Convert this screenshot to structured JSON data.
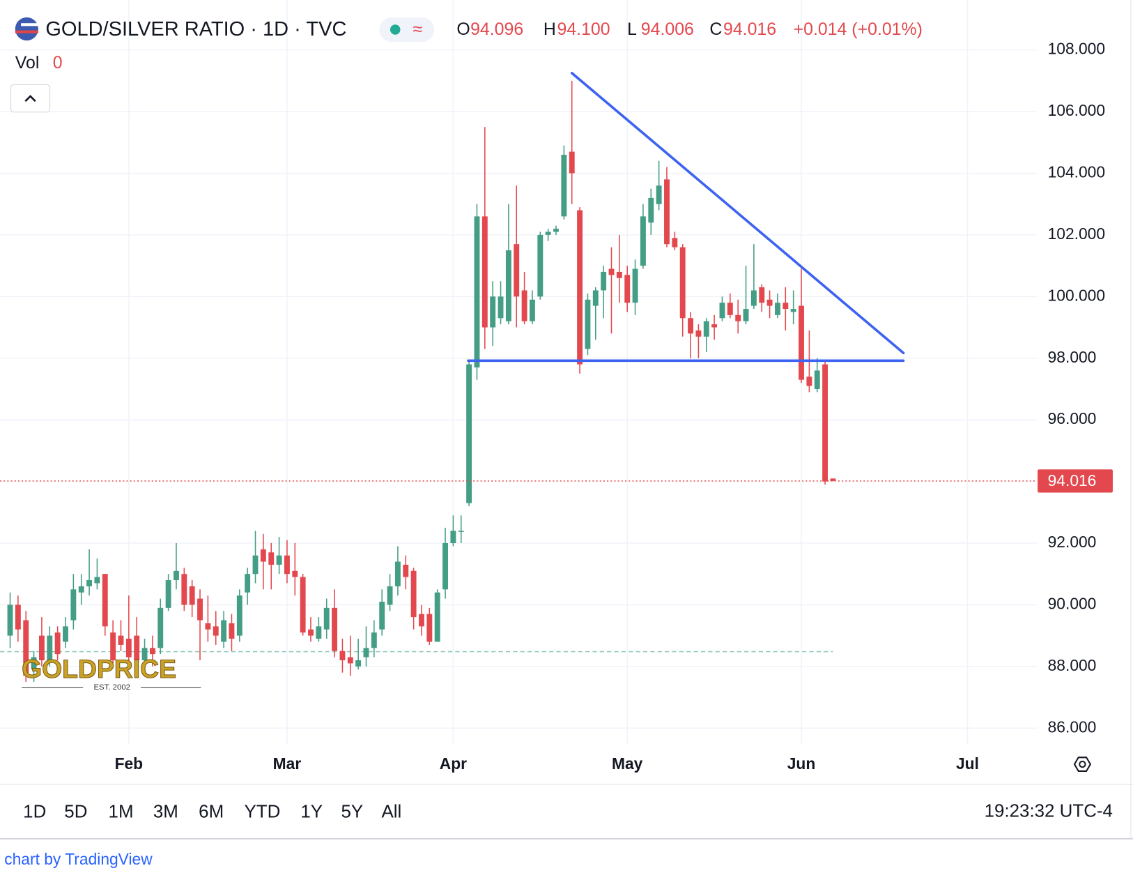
{
  "header": {
    "symbol": "GOLD/SILVER RATIO · 1D · TVC",
    "ohlc": [
      {
        "key": "O",
        "value": "94.096"
      },
      {
        "key": "H",
        "value": "94.100"
      },
      {
        "key": "L",
        "value": "94.006"
      },
      {
        "key": "C",
        "value": "94.016"
      }
    ],
    "change": "+0.014 (+0.01%)",
    "vol_label": "Vol",
    "vol_value": "0"
  },
  "watermark": {
    "text": "GOLDPRICE",
    "sub": "EST. 2002"
  },
  "toolbar": {
    "ranges": [
      "1D",
      "5D",
      "1M",
      "3M",
      "6M",
      "YTD",
      "1Y",
      "5Y",
      "All"
    ],
    "time": "19:23:32 UTC-4"
  },
  "footer": "chart by TradingView",
  "chart_data": {
    "type": "candlestick",
    "up_color": "#449d85",
    "down_color": "#e3484e",
    "grid": true,
    "categories": [
      null,
      null,
      null,
      null,
      null,
      null,
      null,
      null,
      null,
      null,
      null,
      null,
      null,
      null,
      null,
      "Feb",
      null,
      null,
      null,
      null,
      null,
      null,
      null,
      null,
      null,
      null,
      null,
      null,
      null,
      null,
      null,
      null,
      null,
      null,
      null,
      "Mar",
      null,
      null,
      null,
      null,
      null,
      null,
      null,
      null,
      null,
      null,
      null,
      null,
      null,
      null,
      null,
      null,
      null,
      null,
      null,
      null,
      "Apr",
      null,
      null,
      null,
      null,
      null,
      null,
      null,
      null,
      null,
      null,
      null,
      null,
      null,
      null,
      null,
      null,
      null,
      null,
      null,
      null,
      null,
      "May",
      null,
      null,
      null,
      null,
      null,
      null,
      null,
      null,
      null,
      null,
      null,
      null,
      null,
      null,
      null,
      null,
      null,
      null,
      null,
      null,
      null,
      "Jun",
      null,
      null,
      null,
      null,
      null,
      null,
      null,
      null,
      null,
      null,
      null,
      null,
      null,
      null,
      null,
      null,
      null,
      null,
      null,
      null,
      "Jul",
      null,
      null,
      null,
      null,
      null
    ],
    "open": [
      89.0,
      90.0,
      89.5,
      87.9,
      89.0,
      88.2,
      89.1,
      88.8,
      89.5,
      90.4,
      90.6,
      90.7,
      91.0,
      89.1,
      89.0,
      88.9,
      89.0,
      88.2,
      88.6,
      88.6,
      89.9,
      90.8,
      91.0,
      90.6,
      90.2,
      89.4,
      89.3,
      88.8,
      89.4,
      89.0,
      90.4,
      91.0,
      91.8,
      91.7,
      91.3,
      91.6,
      91.1,
      90.9,
      89.2,
      88.9,
      89.2,
      89.9,
      88.5,
      88.3,
      88.0,
      88.3,
      88.6,
      89.2,
      90.0,
      90.6,
      91.3,
      91.1,
      89.7,
      89.7,
      88.8,
      90.5,
      92.0,
      92.4,
      93.3,
      97.7,
      102.6,
      99.0,
      99.3,
      99.2,
      101.7,
      100.2,
      99.2,
      100.0,
      102.0,
      102.1,
      102.6,
      104.7,
      102.8,
      98.3,
      99.7,
      100.2,
      100.9,
      100.8,
      100.7,
      99.8,
      101.0,
      102.4,
      103.0,
      103.8,
      101.9,
      101.6,
      99.3,
      98.9,
      98.7,
      99.1,
      99.3,
      99.8,
      99.4,
      99.2,
      99.7,
      100.3,
      99.9,
      99.4,
      99.8,
      99.5,
      99.7,
      97.4,
      97.0,
      97.8,
      94.096,
      null,
      null,
      null,
      null,
      null,
      null,
      null,
      null,
      null,
      null,
      null,
      null,
      null,
      null,
      null,
      null,
      null,
      null,
      null,
      null,
      null,
      null
    ],
    "high": [
      90.4,
      90.3,
      89.8,
      88.5,
      89.6,
      89.3,
      89.3,
      89.6,
      91.0,
      91.0,
      91.8,
      91.5,
      91.0,
      89.5,
      89.5,
      90.3,
      89.6,
      88.9,
      89.0,
      90.2,
      91.0,
      92.0,
      91.2,
      90.8,
      90.5,
      90.3,
      89.8,
      89.8,
      89.7,
      90.5,
      91.2,
      92.4,
      92.3,
      92.0,
      92.2,
      92.1,
      92.0,
      91.0,
      89.6,
      89.6,
      90.2,
      90.5,
      88.9,
      89.0,
      88.9,
      89.3,
      89.5,
      90.5,
      91.0,
      91.9,
      91.6,
      91.2,
      90.0,
      89.9,
      90.5,
      92.5,
      92.9,
      92.9,
      97.9,
      103.0,
      105.5,
      100.5,
      100.5,
      103.0,
      103.6,
      100.8,
      100.2,
      102.1,
      102.2,
      102.3,
      104.9,
      107.0,
      102.9,
      100.1,
      100.3,
      101.0,
      101.6,
      102.0,
      101.0,
      101.2,
      103.0,
      103.5,
      104.4,
      104.2,
      102.1,
      101.7,
      99.5,
      99.1,
      99.3,
      99.4,
      100.0,
      100.1,
      99.9,
      101.0,
      101.7,
      100.4,
      100.2,
      100.1,
      100.3,
      100.2,
      100.9,
      98.9,
      98.0,
      97.9,
      94.1,
      null,
      null,
      null,
      null,
      null,
      null,
      null,
      null,
      null,
      null,
      null,
      null,
      null,
      null,
      null,
      null,
      null,
      null,
      null,
      null,
      null,
      null
    ],
    "low": [
      88.6,
      88.8,
      87.5,
      87.5,
      88.0,
      88.0,
      88.2,
      88.6,
      89.2,
      90.0,
      90.3,
      90.5,
      89.0,
      88.1,
      88.5,
      88.0,
      88.0,
      88.0,
      88.0,
      88.4,
      89.8,
      90.5,
      89.8,
      89.6,
      88.2,
      88.8,
      88.7,
      88.6,
      88.5,
      88.8,
      90.0,
      90.7,
      90.5,
      90.5,
      91.0,
      90.7,
      90.3,
      89.0,
      88.8,
      88.8,
      88.9,
      88.3,
      87.8,
      87.7,
      87.9,
      88.0,
      88.3,
      89.0,
      89.8,
      90.3,
      90.5,
      89.2,
      89.0,
      88.7,
      88.8,
      90.2,
      91.9,
      92.0,
      93.2,
      97.3,
      98.3,
      98.4,
      99.1,
      99.1,
      99.0,
      99.1,
      99.1,
      99.9,
      101.8,
      102.0,
      102.5,
      103.0,
      97.5,
      98.1,
      98.6,
      99.3,
      98.8,
      99.8,
      99.5,
      99.4,
      100.9,
      102.0,
      102.8,
      101.6,
      101.5,
      98.7,
      98.0,
      98.0,
      98.2,
      98.6,
      99.2,
      99.3,
      98.8,
      99.1,
      99.6,
      99.5,
      99.3,
      99.3,
      98.9,
      99.1,
      97.2,
      96.9,
      96.9,
      93.9,
      94.006,
      null,
      null,
      null,
      null,
      null,
      null,
      null,
      null,
      null,
      null,
      null,
      null,
      null,
      null,
      null,
      null,
      null,
      null,
      null,
      null,
      null,
      null
    ],
    "close": [
      90.0,
      89.2,
      87.7,
      88.3,
      88.2,
      89.0,
      88.4,
      89.3,
      90.5,
      90.6,
      90.8,
      90.9,
      89.3,
      88.2,
      88.7,
      88.3,
      88.2,
      88.6,
      88.4,
      89.9,
      90.8,
      91.1,
      90.0,
      90.0,
      89.5,
      89.2,
      89.0,
      89.5,
      88.9,
      90.3,
      91.0,
      91.6,
      91.4,
      91.3,
      91.6,
      91.0,
      90.9,
      89.1,
      89.0,
      89.3,
      89.9,
      88.5,
      88.2,
      88.1,
      88.2,
      88.6,
      89.1,
      90.1,
      90.6,
      91.4,
      90.9,
      89.6,
      89.3,
      88.8,
      90.4,
      92.0,
      92.4,
      92.4,
      97.8,
      102.6,
      99.0,
      100.0,
      100.0,
      101.5,
      100.0,
      99.2,
      99.9,
      102.0,
      102.1,
      102.2,
      104.6,
      104.0,
      97.8,
      99.9,
      100.2,
      100.8,
      100.7,
      100.6,
      99.8,
      100.9,
      102.6,
      103.2,
      103.6,
      101.7,
      101.6,
      99.3,
      98.8,
      98.7,
      99.2,
      99.0,
      99.8,
      99.4,
      99.2,
      99.6,
      100.2,
      99.8,
      99.7,
      99.8,
      99.6,
      99.6,
      97.3,
      97.1,
      97.6,
      94.0,
      94.016,
      null,
      null,
      null,
      null,
      null,
      null,
      null,
      null,
      null,
      null,
      null,
      null,
      null,
      null,
      null,
      null,
      null,
      null,
      null,
      null,
      null,
      null
    ],
    "ylim": [
      85.46,
      109.62
    ],
    "yticks": [
      {
        "value": 86,
        "label": "86.000"
      },
      {
        "value": 88,
        "label": "88.000"
      },
      {
        "value": 90,
        "label": "90.000"
      },
      {
        "value": 92,
        "label": "92.000"
      },
      {
        "value": 96,
        "label": "96.000"
      },
      {
        "value": 98,
        "label": "98.000"
      },
      {
        "value": 100,
        "label": "100.000"
      },
      {
        "value": 102,
        "label": "102.000"
      },
      {
        "value": 104,
        "label": "104.000"
      },
      {
        "value": 106,
        "label": "106.000"
      },
      {
        "value": 108,
        "label": "108.000"
      }
    ],
    "last_price": 94.016,
    "reference_line": 88.48,
    "trendlines": [
      {
        "color": "#3d63f0",
        "points": [
          [
            71,
            107.25
          ],
          [
            112.9,
            98.17
          ]
        ]
      },
      {
        "color": "#3d63f0",
        "points": [
          [
            57.9,
            97.92
          ],
          [
            112.9,
            97.92
          ]
        ]
      }
    ]
  }
}
